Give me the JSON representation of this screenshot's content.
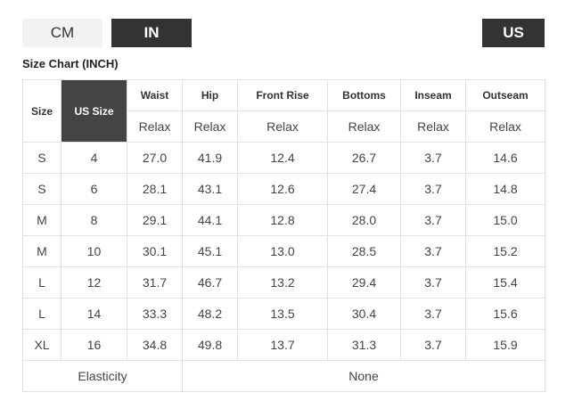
{
  "unit_tabs": {
    "cm": "CM",
    "in": "IN",
    "region": "US"
  },
  "title": "Size Chart (INCH)",
  "columns": {
    "size": "Size",
    "us_size": "US Size",
    "waist": "Waist",
    "hip": "Hip",
    "front_rise": "Front Rise",
    "bottoms": "Bottoms",
    "inseam": "Inseam",
    "outseam": "Outseam"
  },
  "sub_header": [
    "Relax",
    "Relax",
    "Relax",
    "Relax",
    "Relax",
    "Relax"
  ],
  "rows": [
    [
      "S",
      "4",
      "27.0",
      "41.9",
      "12.4",
      "26.7",
      "3.7",
      "14.6"
    ],
    [
      "S",
      "6",
      "28.1",
      "43.1",
      "12.6",
      "27.4",
      "3.7",
      "14.8"
    ],
    [
      "M",
      "8",
      "29.1",
      "44.1",
      "12.8",
      "28.0",
      "3.7",
      "15.0"
    ],
    [
      "M",
      "10",
      "30.1",
      "45.1",
      "13.0",
      "28.5",
      "3.7",
      "15.2"
    ],
    [
      "L",
      "12",
      "31.7",
      "46.7",
      "13.2",
      "29.4",
      "3.7",
      "15.4"
    ],
    [
      "L",
      "14",
      "33.3",
      "48.2",
      "13.5",
      "30.4",
      "3.7",
      "15.6"
    ],
    [
      "XL",
      "16",
      "34.8",
      "49.8",
      "13.7",
      "31.3",
      "3.7",
      "15.9"
    ]
  ],
  "footer": {
    "label": "Elasticity",
    "value": "None"
  },
  "colors": {
    "active_tab": "#333333",
    "inactive_tab": "#f2f2f2",
    "header_highlight": "#444444",
    "border": "#e2e2e2"
  }
}
